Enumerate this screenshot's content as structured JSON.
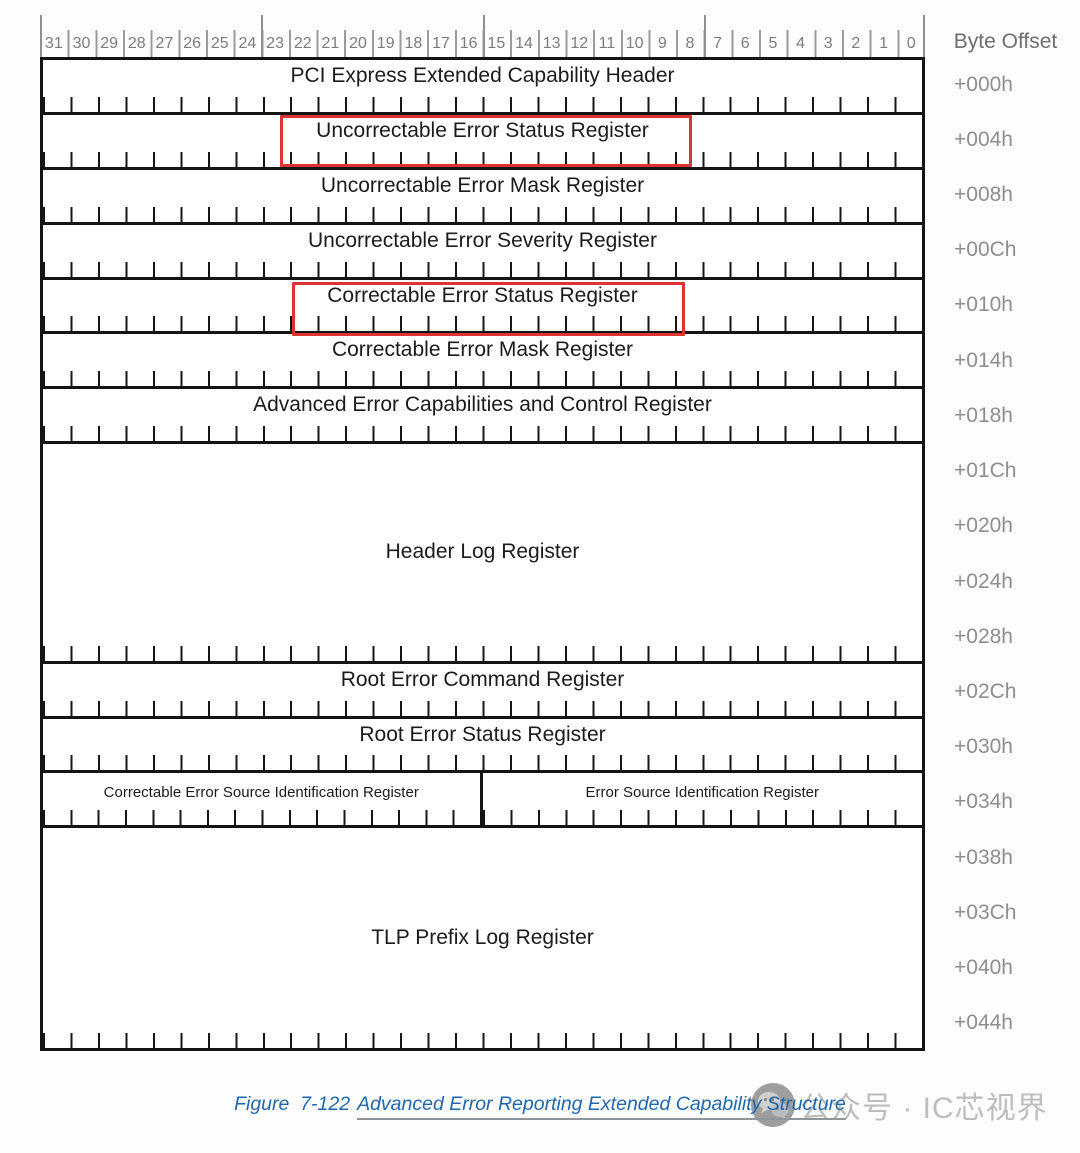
{
  "header": {
    "byte_offset_label": "Byte Offset"
  },
  "bits": [
    "31",
    "30",
    "29",
    "28",
    "27",
    "26",
    "25",
    "24",
    "23",
    "22",
    "21",
    "20",
    "19",
    "18",
    "17",
    "16",
    "15",
    "14",
    "13",
    "12",
    "11",
    "10",
    "9",
    "8",
    "7",
    "6",
    "5",
    "4",
    "3",
    "2",
    "1",
    "0"
  ],
  "table": {
    "rows": [
      {
        "label": "PCI Express Extended Capability Header",
        "units": 1
      },
      {
        "label": "Uncorrectable Error Status Register",
        "units": 1,
        "highlighted": true
      },
      {
        "label": "Uncorrectable Error Mask Register",
        "units": 1
      },
      {
        "label": "Uncorrectable Error Severity Register",
        "units": 1
      },
      {
        "label": "Correctable Error Status Register",
        "units": 1,
        "highlighted": true
      },
      {
        "label": "Correctable Error Mask Register",
        "units": 1
      },
      {
        "label": "Advanced Error Capabilities and Control Register",
        "units": 1
      },
      {
        "label": "Header Log Register",
        "units": 4
      },
      {
        "label": "Root Error Command Register",
        "units": 1
      },
      {
        "label": "Root Error Status Register",
        "units": 1
      },
      {
        "split": true,
        "units": 1,
        "left_label": "Correctable Error Source Identification Register",
        "right_label": "Error Source Identification Register"
      },
      {
        "label": "TLP Prefix Log Register",
        "units": 4
      }
    ]
  },
  "offsets": [
    "+000h",
    "+004h",
    "+008h",
    "+00Ch",
    "+010h",
    "+014h",
    "+018h",
    "+01Ch",
    "+020h",
    "+024h",
    "+028h",
    "+02Ch",
    "+030h",
    "+034h",
    "+038h",
    "+03Ch",
    "+040h",
    "+044h"
  ],
  "caption": {
    "prefix": "Figure  7-122",
    "title": "Advanced Error Reporting Extended Capability Structure"
  },
  "watermark": {
    "text": "公众号 · IC芯视界",
    "logo": "wechat-icon"
  },
  "colors": {
    "highlight_red": "#dd3333",
    "caption_blue": "#2068ad",
    "border_black": "#141414",
    "gray_text": "#8e8e8e",
    "watermark_gray": "#bdbdbd"
  }
}
